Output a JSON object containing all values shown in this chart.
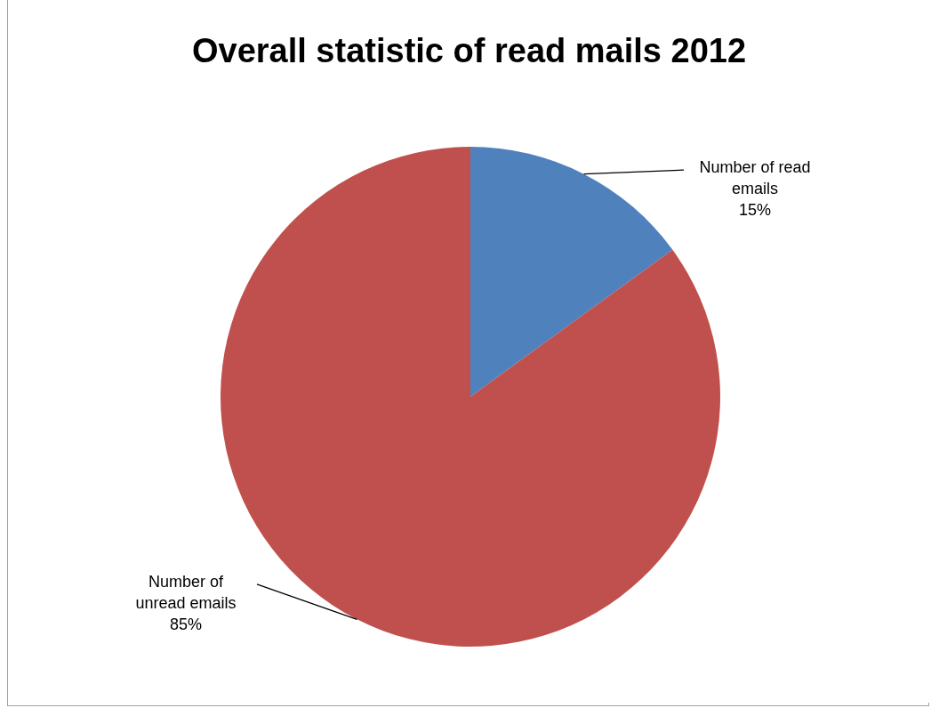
{
  "chart_data": {
    "type": "pie",
    "title": "Overall statistic of read mails 2012",
    "categories": [
      "Number of read emails",
      "Number of unread emails"
    ],
    "values": [
      15,
      85
    ],
    "value_labels": [
      "15%",
      "85%"
    ],
    "colors": [
      "#4f81bd",
      "#c0504d"
    ]
  }
}
